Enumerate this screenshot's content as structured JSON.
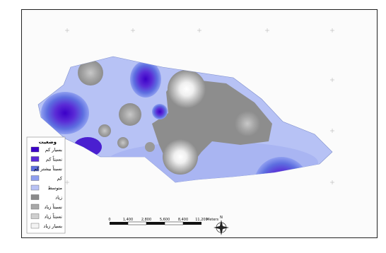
{
  "map": {
    "legend": {
      "title": "وضعیت",
      "items": [
        {
          "label": "بسیار کم",
          "color": "#3b00c8"
        },
        {
          "label": "نسبتاً کم",
          "color": "#5a2bd6"
        },
        {
          "label": "نسبتاً بیشتر کم",
          "color": "#5d6ee0"
        },
        {
          "label": "کم",
          "color": "#8f9ff0"
        },
        {
          "label": "متوسط",
          "color": "#b9c3f5"
        },
        {
          "label": "زیاد",
          "color": "#8a8a8a"
        },
        {
          "label": "نسبتاً زیاد",
          "color": "#a8a8a8"
        },
        {
          "label": "نسبتاً زیاد",
          "color": "#cfcfcf"
        },
        {
          "label": "بسیار زیاد",
          "color": "#f3f3f3"
        }
      ]
    },
    "scale_bar": {
      "labels": [
        "0",
        "1,400",
        "2,800",
        "5,600",
        "8,400",
        "11,200"
      ],
      "unit": "Meters"
    },
    "north_arrow": {
      "label": "N"
    },
    "ticks_x": [
      "",
      "",
      "",
      "",
      ""
    ],
    "ticks_y": [
      "",
      "",
      "",
      "",
      ""
    ]
  }
}
